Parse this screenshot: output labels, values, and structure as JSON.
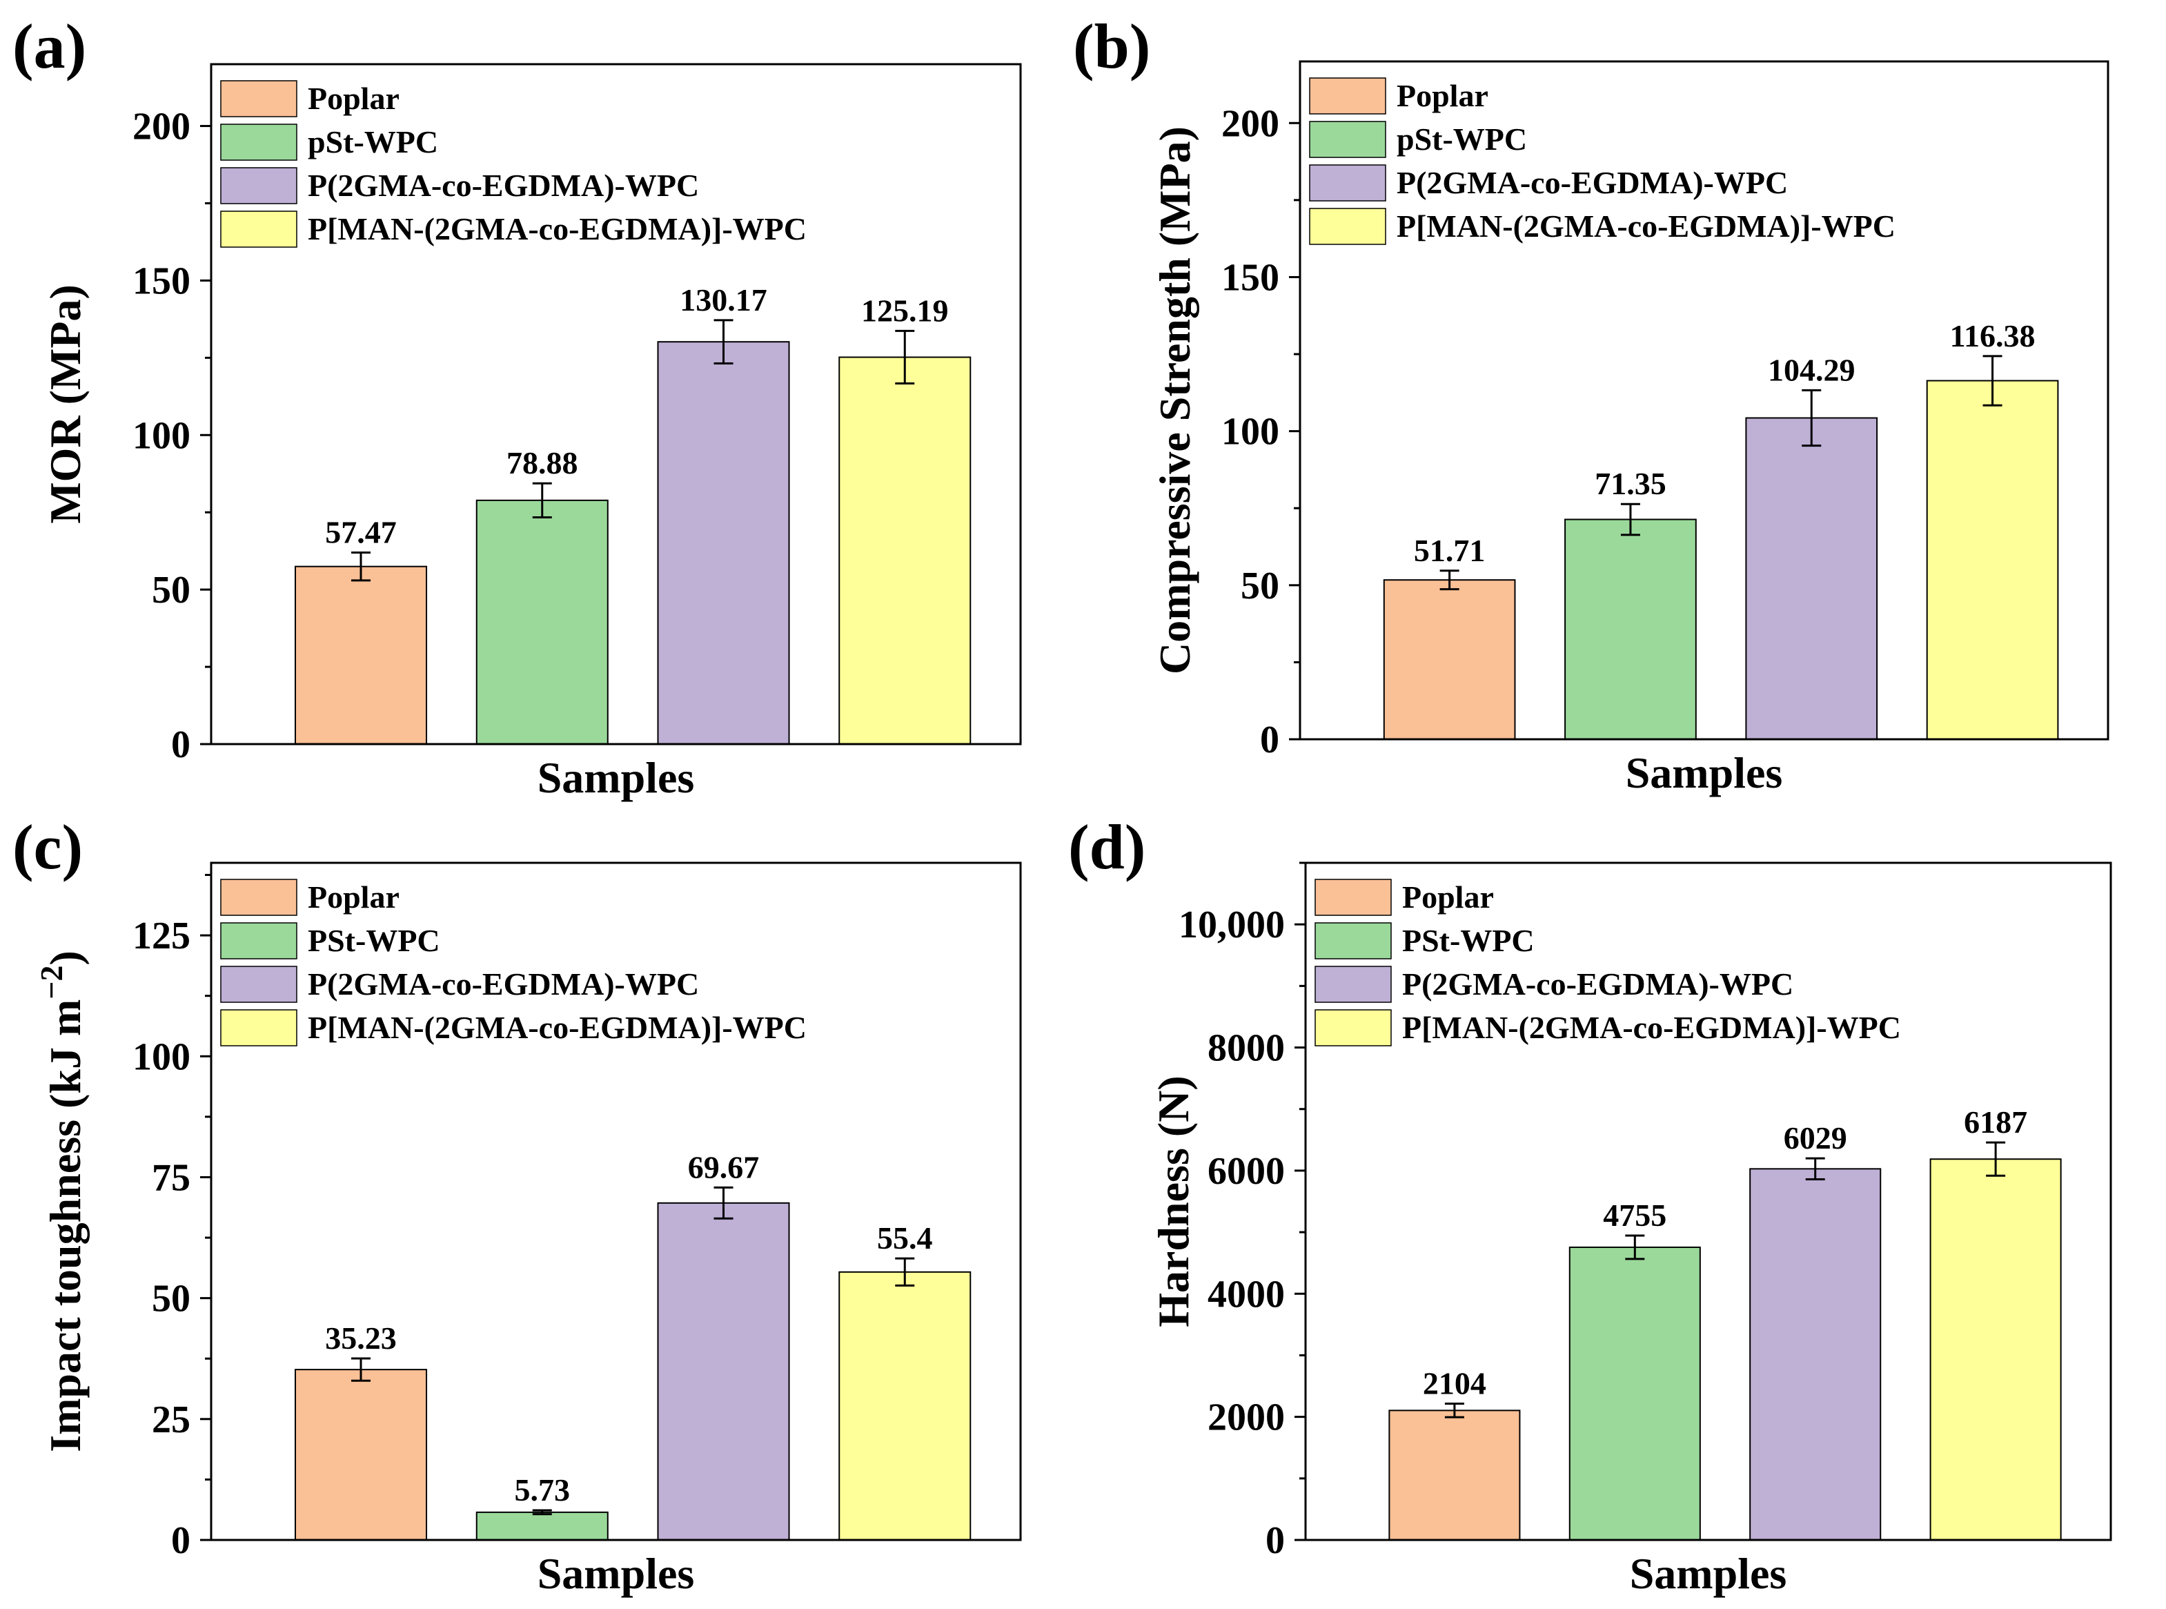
{
  "chart_data": [
    {
      "id": "a",
      "panel_label": "(a)",
      "type": "bar",
      "ylabel": "MOR (MPa)",
      "xlabel": "Samples",
      "ylim": [
        0,
        220
      ],
      "yticks": [
        0,
        50,
        100,
        150,
        200
      ],
      "ytick_labels": [
        "0",
        "50",
        "100",
        "150",
        "200"
      ],
      "legend_position": "top-left",
      "series_colors": [
        "#fac096",
        "#9bd99b",
        "#bfb0d6",
        "#ffff99"
      ],
      "categories": [
        "Poplar",
        "pSt-WPC",
        "P(2GMA-co-EGDMA)-WPC",
        "P[MAN-(2GMA-co-EGDMA)]-WPC"
      ],
      "values": [
        57.47,
        78.88,
        130.17,
        125.19
      ],
      "errors": [
        4.5,
        5.5,
        7.0,
        8.5
      ],
      "value_labels": [
        "57.47",
        "78.88",
        "130.17",
        "125.19"
      ]
    },
    {
      "id": "b",
      "panel_label": "(b)",
      "type": "bar",
      "ylabel": "Compressive Strength (MPa)",
      "xlabel": "Samples",
      "ylim": [
        0,
        220
      ],
      "yticks": [
        0,
        50,
        100,
        150,
        200
      ],
      "ytick_labels": [
        "0",
        "50",
        "100",
        "150",
        "200"
      ],
      "legend_position": "top-left",
      "series_colors": [
        "#fac096",
        "#9bd99b",
        "#bfb0d6",
        "#ffff99"
      ],
      "categories": [
        "Poplar",
        "pSt-WPC",
        "P(2GMA-co-EGDMA)-WPC",
        "P[MAN-(2GMA-co-EGDMA)]-WPC"
      ],
      "values": [
        51.71,
        71.35,
        104.29,
        116.38
      ],
      "errors": [
        3.0,
        5.0,
        9.0,
        8.0
      ],
      "value_labels": [
        "51.71",
        "71.35",
        "104.29",
        "116.38"
      ]
    },
    {
      "id": "c",
      "panel_label": "(c)",
      "type": "bar",
      "ylabel": "Impact toughness (kJ m",
      "ylabel_superscript": "−2",
      "ylabel_close": ")",
      "xlabel": "Samples",
      "ylim": [
        0,
        140
      ],
      "yticks": [
        0,
        25,
        50,
        75,
        100,
        125
      ],
      "ytick_labels": [
        "0",
        "25",
        "50",
        "75",
        "100",
        "125"
      ],
      "legend_position": "top-left",
      "series_colors": [
        "#fac096",
        "#9bd99b",
        "#bfb0d6",
        "#ffff99"
      ],
      "categories": [
        "Poplar",
        "PSt-WPC",
        "P(2GMA-co-EGDMA)-WPC",
        "P[MAN-(2GMA-co-EGDMA)]-WPC"
      ],
      "values": [
        35.23,
        5.73,
        69.67,
        55.4
      ],
      "errors": [
        2.3,
        0.4,
        3.2,
        2.8
      ],
      "value_labels": [
        "35.23",
        "5.73",
        "69.67",
        "55.4"
      ]
    },
    {
      "id": "d",
      "panel_label": "(d)",
      "type": "bar",
      "ylabel": "Hardness (N)",
      "xlabel": "Samples",
      "ylim": [
        0,
        11000
      ],
      "yticks": [
        0,
        2000,
        4000,
        6000,
        8000,
        10000
      ],
      "ytick_labels": [
        "0",
        "2000",
        "4000",
        "6000",
        "8000",
        "10,000"
      ],
      "legend_position": "top-left",
      "series_colors": [
        "#fac096",
        "#9bd99b",
        "#bfb0d6",
        "#ffff99"
      ],
      "categories": [
        "Poplar",
        "PSt-WPC",
        "P(2GMA-co-EGDMA)-WPC",
        "P[MAN-(2GMA-co-EGDMA)]-WPC"
      ],
      "values": [
        2104,
        4755,
        6029,
        6187
      ],
      "errors": [
        110,
        190,
        170,
        270
      ],
      "value_labels": [
        "2104",
        "4755",
        "6029",
        "6187"
      ]
    }
  ]
}
